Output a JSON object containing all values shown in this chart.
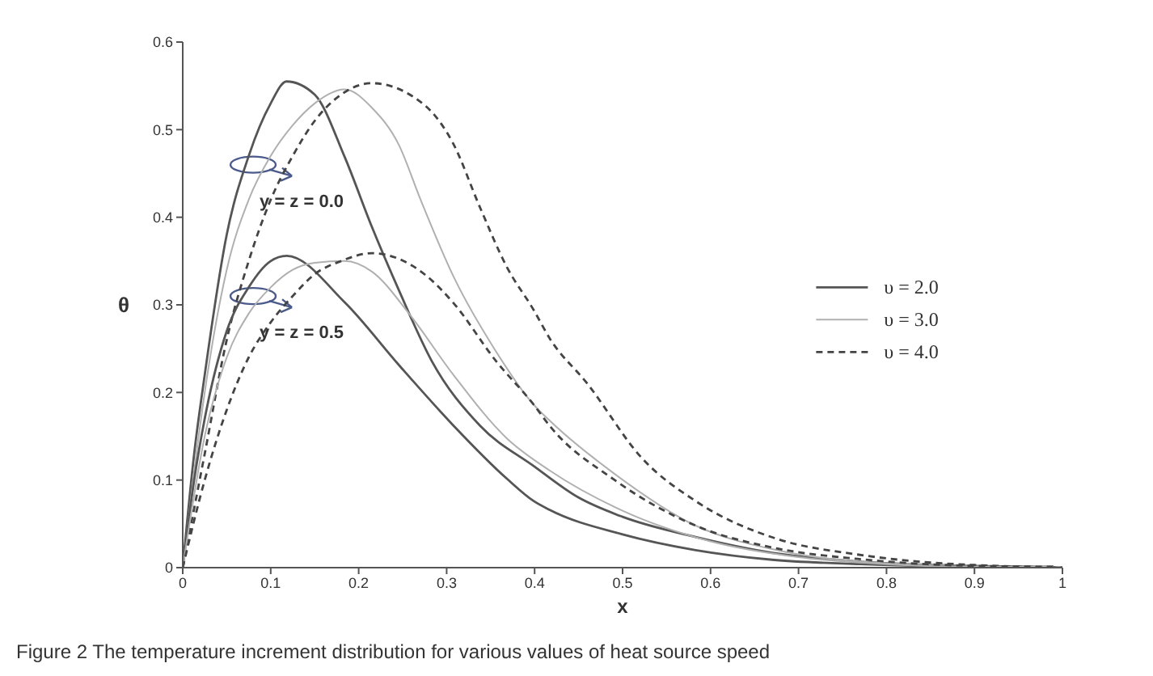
{
  "chart_data": {
    "type": "line",
    "xlabel": "x",
    "ylabel": "θ",
    "xlim": [
      0,
      1
    ],
    "ylim": [
      0,
      0.6
    ],
    "xticks": [
      0,
      0.1,
      0.2,
      0.3,
      0.4,
      0.5,
      0.6,
      0.7,
      0.8,
      0.9,
      1
    ],
    "yticks": [
      0,
      0.1,
      0.2,
      0.3,
      0.4,
      0.5,
      0.6
    ],
    "legend": "right",
    "marker": "none",
    "annotations": [
      {
        "text": "y = z = 0.0",
        "x": 0.08,
        "y": 0.46
      },
      {
        "text": "y = z = 0.5",
        "x": 0.08,
        "y": 0.31
      },
      "Figure 2  The temperature increment distribution for various values of heat source speed"
    ],
    "series": [
      {
        "name": "υ = 2.0",
        "color": "#555555",
        "line_style": "solid",
        "x": [
          0,
          0.013,
          0.025,
          0.05,
          0.075,
          0.1,
          0.118,
          0.15,
          0.184,
          0.215,
          0.246,
          0.283,
          0.338,
          0.399,
          0.45,
          0.5,
          0.583,
          0.67,
          0.767,
          0.9,
          1
        ],
        "values": [
          0,
          0.13,
          0.22,
          0.38,
          0.47,
          0.53,
          0.555,
          0.54,
          0.469,
          0.389,
          0.316,
          0.236,
          0.162,
          0.116,
          0.08,
          0.058,
          0.035,
          0.017,
          0.007,
          0.002,
          0
        ]
      },
      {
        "name": "υ = 3.0",
        "color": "#b0b0b0",
        "line_style": "solid",
        "x": [
          0,
          0.013,
          0.025,
          0.05,
          0.075,
          0.1,
          0.125,
          0.15,
          0.184,
          0.215,
          0.246,
          0.27,
          0.307,
          0.356,
          0.399,
          0.417,
          0.491,
          0.583,
          0.675,
          0.8,
          1
        ],
        "values": [
          0,
          0.11,
          0.2,
          0.34,
          0.42,
          0.47,
          0.505,
          0.53,
          0.546,
          0.525,
          0.482,
          0.421,
          0.334,
          0.247,
          0.186,
          0.168,
          0.107,
          0.048,
          0.02,
          0.005,
          0
        ]
      },
      {
        "name": "υ = 4.0",
        "color": "#444444",
        "line_style": "dashed",
        "x": [
          0,
          0.025,
          0.05,
          0.075,
          0.1,
          0.125,
          0.15,
          0.18,
          0.215,
          0.276,
          0.307,
          0.338,
          0.368,
          0.399,
          0.417,
          0.46,
          0.522,
          0.583,
          0.675,
          0.767,
          0.835,
          0.9,
          1
        ],
        "values": [
          0,
          0.13,
          0.26,
          0.35,
          0.42,
          0.47,
          0.51,
          0.54,
          0.553,
          0.527,
          0.485,
          0.411,
          0.344,
          0.294,
          0.262,
          0.21,
          0.125,
          0.076,
          0.033,
          0.015,
          0.007,
          0.003,
          0
        ]
      },
      {
        "color": "#555555",
        "line_style": "solid",
        "x": [
          0,
          0.013,
          0.025,
          0.05,
          0.075,
          0.1,
          0.118,
          0.184,
          0.246,
          0.307,
          0.368,
          0.399,
          0.417,
          0.5,
          0.583,
          0.67,
          0.77,
          0.9,
          0.99
        ],
        "values": [
          0,
          0.1,
          0.17,
          0.27,
          0.32,
          0.35,
          0.356,
          0.303,
          0.231,
          0.163,
          0.102,
          0.076,
          0.066,
          0.038,
          0.02,
          0.009,
          0.004,
          0.001,
          0.001
        ]
      },
      {
        "color": "#b0b0b0",
        "line_style": "solid",
        "x": [
          0,
          0.025,
          0.05,
          0.075,
          0.1,
          0.125,
          0.15,
          0.184,
          0.215,
          0.258,
          0.307,
          0.368,
          0.417,
          0.5,
          0.6,
          0.7,
          0.8,
          0.9,
          0.99
        ],
        "values": [
          0,
          0.15,
          0.24,
          0.29,
          0.32,
          0.34,
          0.348,
          0.35,
          0.338,
          0.289,
          0.221,
          0.148,
          0.111,
          0.065,
          0.03,
          0.012,
          0.004,
          0.001,
          0.001
        ]
      },
      {
        "color": "#444444",
        "line_style": "dashed",
        "x": [
          0,
          0.025,
          0.05,
          0.075,
          0.1,
          0.125,
          0.15,
          0.18,
          0.215,
          0.276,
          0.307,
          0.356,
          0.399,
          0.417,
          0.491,
          0.583,
          0.675,
          0.767,
          0.9,
          0.99
        ],
        "values": [
          0,
          0.1,
          0.18,
          0.24,
          0.28,
          0.31,
          0.335,
          0.35,
          0.359,
          0.334,
          0.303,
          0.236,
          0.186,
          0.162,
          0.1,
          0.048,
          0.022,
          0.01,
          0.002,
          0.001
        ]
      }
    ]
  }
}
